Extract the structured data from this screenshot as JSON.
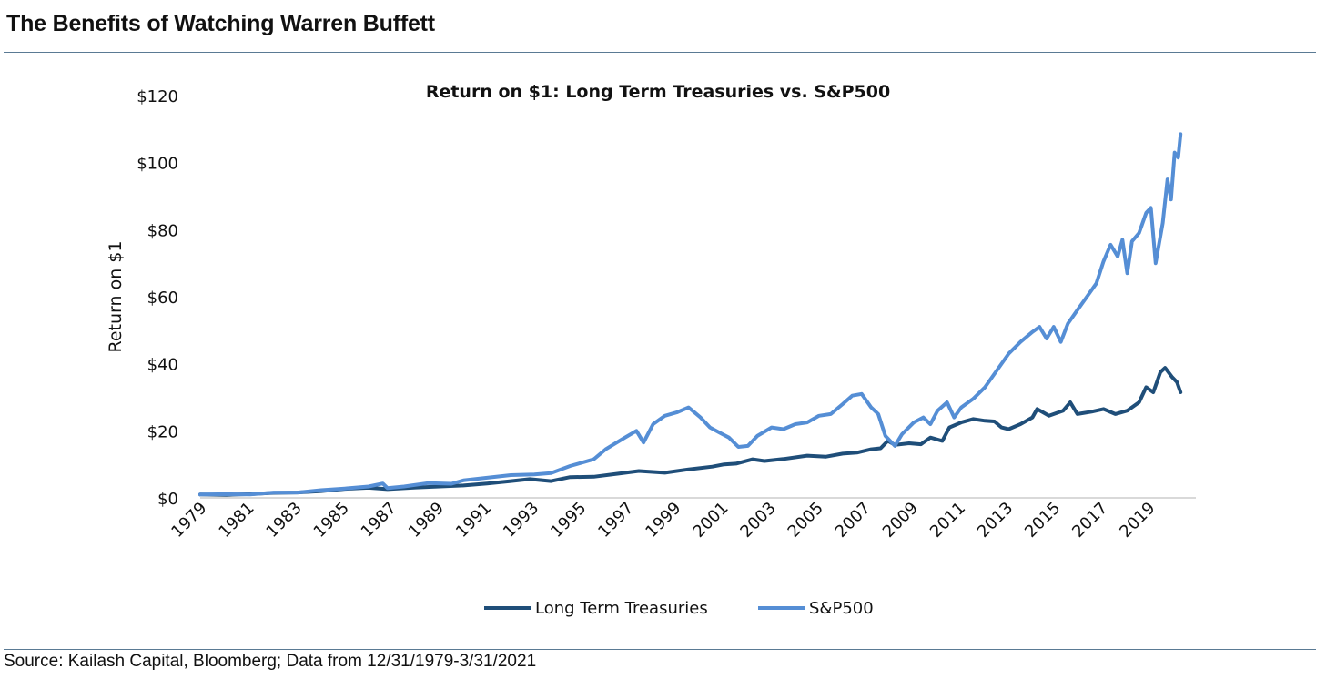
{
  "page": {
    "title": "The Benefits of Watching Warren Buffett",
    "source": "Source: Kailash Capital, Bloomberg; Data from 12/31/1979-3/31/2021"
  },
  "colors": {
    "treasuries": "#1f4e79",
    "sp500": "#558ed5",
    "axis": "#d9d9d9",
    "rule": "#5a7a94"
  },
  "chart_data": {
    "type": "line",
    "title": "Return on $1: Long Term Treasuries vs. S&P500",
    "xlabel": "",
    "ylabel": "Return on $1",
    "ylim": [
      0,
      120
    ],
    "xlim": [
      1979.9,
      2021.25
    ],
    "y_ticks": [
      0,
      20,
      40,
      60,
      80,
      100,
      120
    ],
    "y_tick_labels": [
      "$0",
      "$20",
      "$40",
      "$60",
      "$80",
      "$100",
      "$120"
    ],
    "x_ticks": [
      1979,
      1981,
      1983,
      1985,
      1987,
      1989,
      1991,
      1993,
      1995,
      1997,
      1999,
      2001,
      2003,
      2005,
      2007,
      2009,
      2011,
      2013,
      2015,
      2017,
      2019
    ],
    "x_tick_labels": [
      "1979",
      "1981",
      "1983",
      "1985",
      "1987",
      "1989",
      "1991",
      "1993",
      "1995",
      "1997",
      "1999",
      "2001",
      "2003",
      "2005",
      "2007",
      "2009",
      "2011",
      "2013",
      "2015",
      "2017",
      "2019"
    ],
    "grid": false,
    "legend": "bottom",
    "series": [
      {
        "name": "Long Term Treasuries",
        "color": "#1f4e79",
        "points": [
          [
            1979.9,
            1.0
          ],
          [
            1981.0,
            0.9
          ],
          [
            1982.0,
            1.1
          ],
          [
            1983.0,
            1.5
          ],
          [
            1984.0,
            1.6
          ],
          [
            1985.0,
            2.0
          ],
          [
            1986.0,
            2.7
          ],
          [
            1987.0,
            3.0
          ],
          [
            1987.8,
            2.6
          ],
          [
            1989.0,
            3.1
          ],
          [
            1990.0,
            3.4
          ],
          [
            1991.0,
            3.7
          ],
          [
            1992.0,
            4.3
          ],
          [
            1993.0,
            5.0
          ],
          [
            1993.8,
            5.6
          ],
          [
            1994.7,
            5.0
          ],
          [
            1995.5,
            6.2
          ],
          [
            1996.5,
            6.3
          ],
          [
            1997.5,
            7.2
          ],
          [
            1998.4,
            8.0
          ],
          [
            1999.5,
            7.5
          ],
          [
            2000.5,
            8.5
          ],
          [
            2001.5,
            9.3
          ],
          [
            2002.0,
            10.0
          ],
          [
            2002.5,
            10.2
          ],
          [
            2003.2,
            11.5
          ],
          [
            2003.7,
            11.0
          ],
          [
            2004.5,
            11.6
          ],
          [
            2005.5,
            12.6
          ],
          [
            2006.3,
            12.3
          ],
          [
            2007.0,
            13.2
          ],
          [
            2007.6,
            13.5
          ],
          [
            2008.2,
            14.5
          ],
          [
            2008.6,
            14.8
          ],
          [
            2008.9,
            17.0
          ],
          [
            2009.2,
            15.8
          ],
          [
            2009.8,
            16.3
          ],
          [
            2010.3,
            16.0
          ],
          [
            2010.7,
            18.0
          ],
          [
            2011.2,
            17.0
          ],
          [
            2011.5,
            21.0
          ],
          [
            2012.0,
            22.5
          ],
          [
            2012.5,
            23.5
          ],
          [
            2013.0,
            23.0
          ],
          [
            2013.4,
            22.8
          ],
          [
            2013.7,
            21.0
          ],
          [
            2014.0,
            20.5
          ],
          [
            2014.5,
            22.0
          ],
          [
            2015.0,
            24.0
          ],
          [
            2015.2,
            26.5
          ],
          [
            2015.7,
            24.5
          ],
          [
            2016.3,
            26.0
          ],
          [
            2016.6,
            28.5
          ],
          [
            2016.9,
            25.0
          ],
          [
            2017.5,
            25.7
          ],
          [
            2018.0,
            26.5
          ],
          [
            2018.5,
            25.0
          ],
          [
            2019.0,
            26.0
          ],
          [
            2019.5,
            28.5
          ],
          [
            2019.8,
            33.0
          ],
          [
            2020.1,
            31.5
          ],
          [
            2020.4,
            37.5
          ],
          [
            2020.6,
            38.8
          ],
          [
            2020.9,
            36.0
          ],
          [
            2021.1,
            34.5
          ],
          [
            2021.25,
            31.5
          ]
        ]
      },
      {
        "name": "S&P500",
        "color": "#558ed5",
        "points": [
          [
            1979.9,
            1.0
          ],
          [
            1981.0,
            1.1
          ],
          [
            1982.0,
            1.0
          ],
          [
            1983.0,
            1.6
          ],
          [
            1984.0,
            1.6
          ],
          [
            1985.0,
            2.3
          ],
          [
            1986.0,
            2.8
          ],
          [
            1987.0,
            3.4
          ],
          [
            1987.6,
            4.3
          ],
          [
            1987.8,
            2.9
          ],
          [
            1988.5,
            3.4
          ],
          [
            1989.5,
            4.4
          ],
          [
            1990.5,
            4.2
          ],
          [
            1991.0,
            5.2
          ],
          [
            1992.0,
            6.0
          ],
          [
            1993.0,
            6.8
          ],
          [
            1994.0,
            7.0
          ],
          [
            1994.7,
            7.4
          ],
          [
            1995.5,
            9.5
          ],
          [
            1996.5,
            11.5
          ],
          [
            1997.0,
            14.5
          ],
          [
            1997.7,
            17.5
          ],
          [
            1998.3,
            20.0
          ],
          [
            1998.6,
            16.5
          ],
          [
            1999.0,
            22.0
          ],
          [
            1999.5,
            24.5
          ],
          [
            2000.0,
            25.5
          ],
          [
            2000.5,
            27.0
          ],
          [
            2001.0,
            24.0
          ],
          [
            2001.4,
            21.0
          ],
          [
            2001.8,
            19.5
          ],
          [
            2002.2,
            18.0
          ],
          [
            2002.6,
            15.2
          ],
          [
            2003.0,
            15.5
          ],
          [
            2003.4,
            18.5
          ],
          [
            2004.0,
            21.0
          ],
          [
            2004.5,
            20.5
          ],
          [
            2005.0,
            22.0
          ],
          [
            2005.5,
            22.5
          ],
          [
            2006.0,
            24.5
          ],
          [
            2006.5,
            25.0
          ],
          [
            2007.0,
            28.0
          ],
          [
            2007.4,
            30.5
          ],
          [
            2007.8,
            31.0
          ],
          [
            2008.2,
            27.0
          ],
          [
            2008.5,
            25.0
          ],
          [
            2008.8,
            18.5
          ],
          [
            2009.2,
            15.5
          ],
          [
            2009.5,
            19.0
          ],
          [
            2010.0,
            22.5
          ],
          [
            2010.4,
            24.0
          ],
          [
            2010.7,
            22.0
          ],
          [
            2011.0,
            26.0
          ],
          [
            2011.4,
            28.5
          ],
          [
            2011.7,
            24.0
          ],
          [
            2012.0,
            27.0
          ],
          [
            2012.5,
            29.5
          ],
          [
            2013.0,
            33.0
          ],
          [
            2013.5,
            38.0
          ],
          [
            2014.0,
            43.0
          ],
          [
            2014.5,
            46.5
          ],
          [
            2015.0,
            49.5
          ],
          [
            2015.3,
            51.0
          ],
          [
            2015.6,
            47.5
          ],
          [
            2015.9,
            51.0
          ],
          [
            2016.2,
            46.5
          ],
          [
            2016.5,
            52.0
          ],
          [
            2016.9,
            56.0
          ],
          [
            2017.3,
            60.0
          ],
          [
            2017.7,
            64.0
          ],
          [
            2018.0,
            70.5
          ],
          [
            2018.3,
            75.5
          ],
          [
            2018.6,
            72.0
          ],
          [
            2018.8,
            77.0
          ],
          [
            2019.0,
            67.0
          ],
          [
            2019.2,
            76.5
          ],
          [
            2019.5,
            79.0
          ],
          [
            2019.8,
            85.0
          ],
          [
            2020.0,
            86.5
          ],
          [
            2020.2,
            70.0
          ],
          [
            2020.5,
            82.0
          ],
          [
            2020.7,
            95.0
          ],
          [
            2020.85,
            89.0
          ],
          [
            2021.0,
            103.0
          ],
          [
            2021.15,
            101.5
          ],
          [
            2021.25,
            108.5
          ]
        ]
      }
    ]
  }
}
